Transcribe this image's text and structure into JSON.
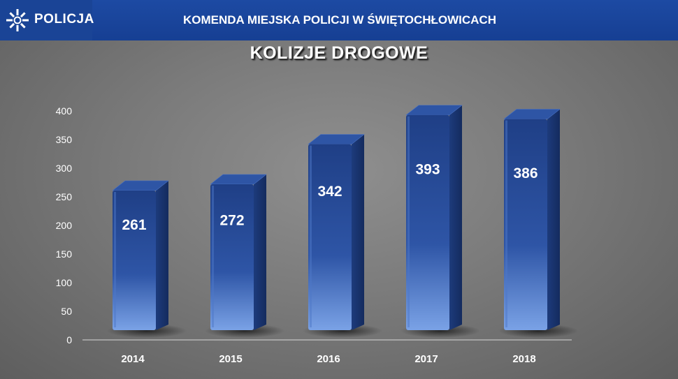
{
  "header": {
    "logo_text": "POLICJA",
    "title": "KOMENDA MIEJSKA POLICJI W ŚWIĘTOCHŁOWICACH",
    "logo_icon": "police-star-icon"
  },
  "colors": {
    "header_bg": "#1d4aa3",
    "bar_front": "#2a4f9c",
    "bar_side": "#1b3670",
    "bar_top": "#2f56a6",
    "background": "#7a7a7a"
  },
  "chart_data": {
    "type": "bar",
    "title": "KOLIZJE DROGOWE",
    "categories": [
      "2014",
      "2015",
      "2016",
      "2017",
      "2018"
    ],
    "values": [
      261,
      272,
      342,
      393,
      386
    ],
    "ylim": [
      0,
      400
    ],
    "yticks": [
      0,
      50,
      100,
      150,
      200,
      250,
      300,
      350,
      400
    ],
    "grid": false,
    "style": "3d-cylinder-bars",
    "data_labels": true
  }
}
